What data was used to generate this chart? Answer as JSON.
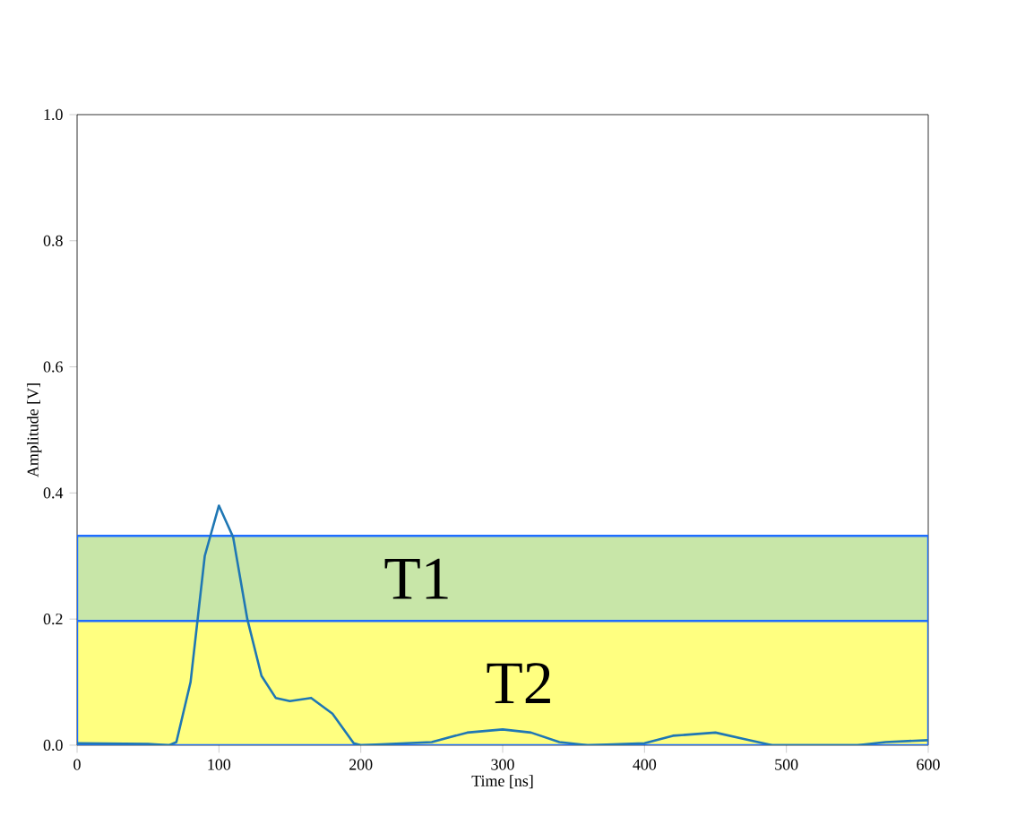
{
  "chart_data": {
    "type": "line",
    "xlabel": "Time [ns]",
    "ylabel": "Amplitude [V]",
    "series": [
      {
        "color": "#1f77b4",
        "x": [
          0,
          50,
          65,
          70,
          80,
          90,
          100,
          110,
          120,
          130,
          140,
          150,
          165,
          180,
          195,
          200,
          250,
          275,
          300,
          320,
          340,
          360,
          400,
          420,
          450,
          470,
          490,
          550,
          570,
          600
        ],
        "values": [
          0.003,
          0.002,
          0,
          0.005,
          0.1,
          0.3,
          0.38,
          0.33,
          0.2,
          0.11,
          0.075,
          0.07,
          0.075,
          0.05,
          0.003,
          0,
          0.005,
          0.02,
          0.025,
          0.02,
          0.005,
          0,
          0.003,
          0.015,
          0.02,
          0.01,
          0,
          0,
          0.005,
          0.008
        ]
      }
    ],
    "xlim": [
      0,
      600
    ],
    "ylim": [
      0,
      1.0
    ],
    "xticks": [
      0,
      100,
      200,
      300,
      400,
      500,
      600
    ],
    "yticks": [
      {
        "value": 0,
        "label": "0.0"
      },
      0.2,
      0.4,
      0.6,
      0.8,
      {
        "value": 1,
        "label": "1.0"
      }
    ],
    "bands": [
      {
        "axis": "y",
        "from": 0.196,
        "to": 0.332,
        "label": "T1",
        "color": "#c8e6a8"
      },
      {
        "axis": "y",
        "from": 0,
        "to": 0.197,
        "label": "T2",
        "color": "#ffff80"
      }
    ]
  }
}
